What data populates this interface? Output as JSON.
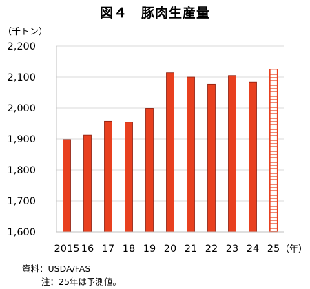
{
  "chart_data": {
    "type": "bar",
    "title": "図４　豚肉生産量",
    "y_unit_label": "（千トン）",
    "x_unit_label": "（年）",
    "categories": [
      "2015",
      "16",
      "17",
      "18",
      "19",
      "20",
      "21",
      "22",
      "23",
      "24",
      "25"
    ],
    "values": [
      1898,
      1913,
      1957,
      1954,
      1999,
      2114,
      2100,
      2077,
      2105,
      2084,
      2125
    ],
    "forecast": [
      false,
      false,
      false,
      false,
      false,
      false,
      false,
      false,
      false,
      false,
      true
    ],
    "ylim": [
      1600,
      2200
    ],
    "y_ticks": [
      1600,
      1700,
      1800,
      1900,
      2000,
      2100,
      2200
    ],
    "y_tick_labels": [
      "1,600",
      "1,700",
      "1,800",
      "1,900",
      "2,000",
      "2,100",
      "2,200"
    ],
    "grid": true,
    "bar_color": "#e8401f",
    "bar_edge_color": "#8a1c0c",
    "gridline_color": "#d9d9d9"
  },
  "notes": {
    "source": "資料：USDA/FAS",
    "forecast_note": "注：25年は予測値。"
  }
}
